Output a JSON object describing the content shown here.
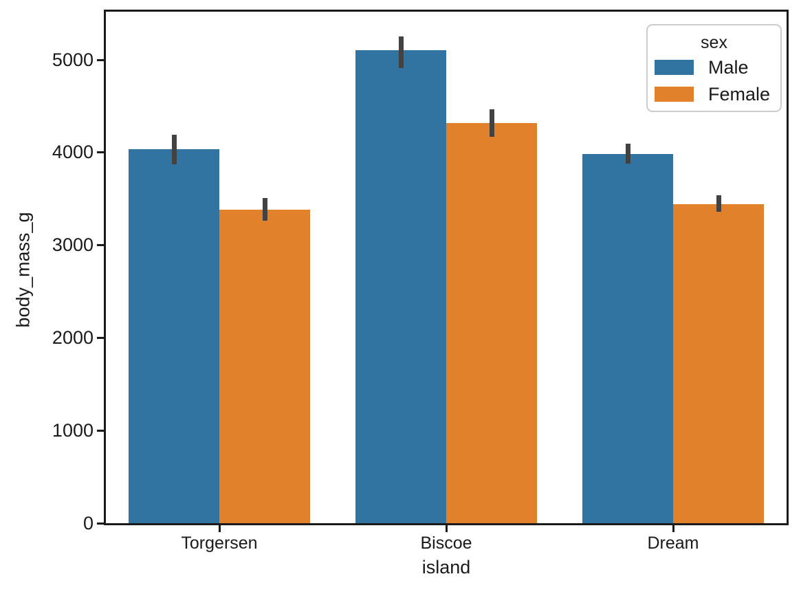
{
  "chart_data": {
    "type": "bar",
    "title": "",
    "xlabel": "island",
    "ylabel": "body_mass_g",
    "categories": [
      "Torgersen",
      "Biscoe",
      "Dream"
    ],
    "series": [
      {
        "name": "Male",
        "color": "#3274a1",
        "values": [
          4035,
          5105,
          3987
        ],
        "ci_low": [
          3870,
          4910,
          3880
        ],
        "ci_high": [
          4195,
          5250,
          4095
        ]
      },
      {
        "name": "Female",
        "color": "#e1812c",
        "values": [
          3387,
          4319,
          3446
        ],
        "ci_low": [
          3265,
          4170,
          3360
        ],
        "ci_high": [
          3510,
          4465,
          3540
        ]
      }
    ],
    "ylim": [
      0,
      5520
    ],
    "y_ticks": [
      0,
      1000,
      2000,
      3000,
      4000,
      5000
    ],
    "error_bar_color": "#424242",
    "grid": false,
    "legend": {
      "title": "sex",
      "position": "upper right"
    }
  }
}
